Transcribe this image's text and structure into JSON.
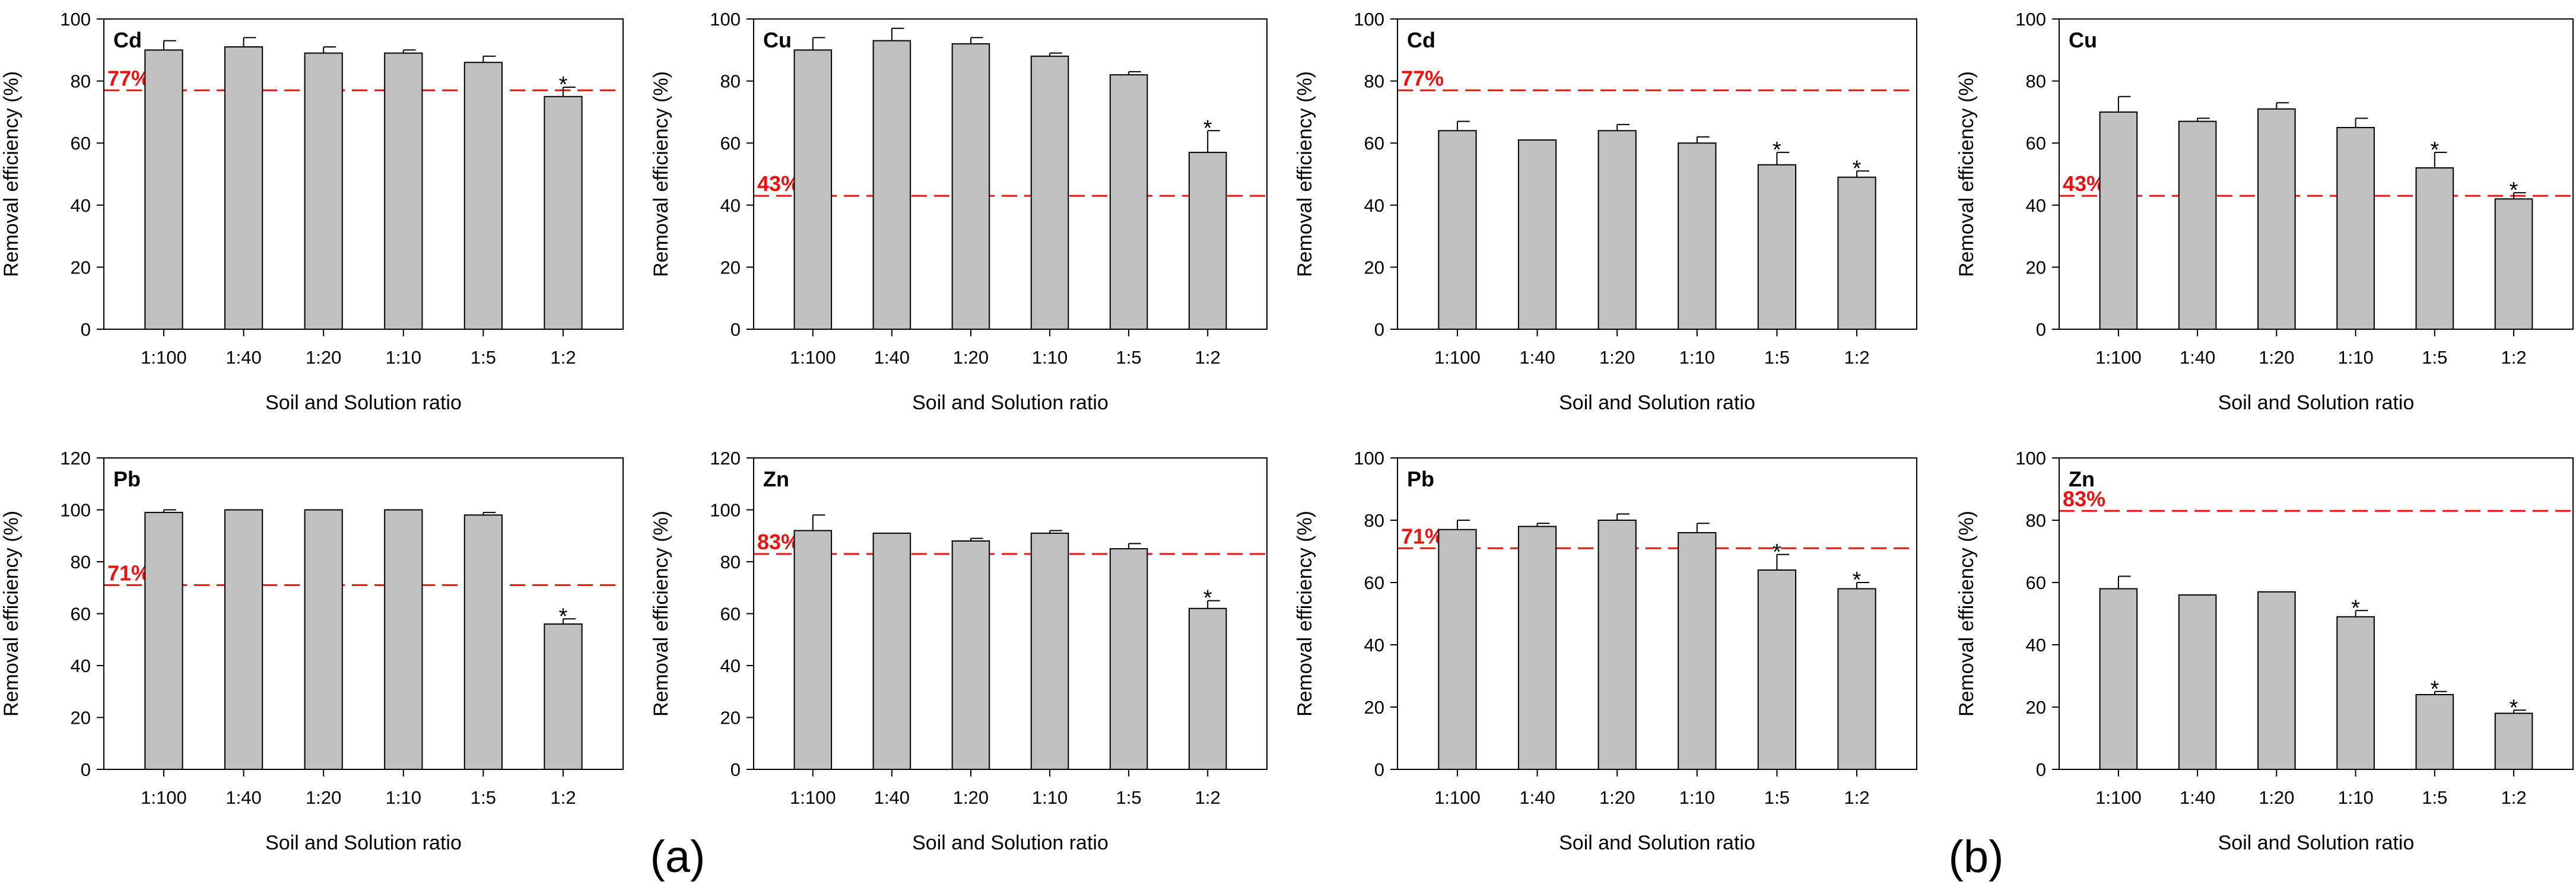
{
  "chart_data": [
    {
      "type": "bar",
      "group": "a",
      "metal": "Cd",
      "categories": [
        "1:100",
        "1:40",
        "1:20",
        "1:10",
        "1:5",
        "1:2"
      ],
      "values": [
        90,
        91,
        89,
        89,
        86,
        75
      ],
      "errors": [
        3,
        3,
        2,
        1,
        2,
        3
      ],
      "significant": [
        false,
        false,
        false,
        false,
        false,
        true
      ],
      "reference_line": 77,
      "reference_label": "77%",
      "xlabel": "Soil and Solution ratio",
      "ylabel": "Removal efficiency (%)",
      "ylim": [
        0,
        100
      ],
      "yticks": [
        0,
        20,
        40,
        60,
        80,
        100
      ]
    },
    {
      "type": "bar",
      "group": "a",
      "metal": "Cu",
      "categories": [
        "1:100",
        "1:40",
        "1:20",
        "1:10",
        "1:5",
        "1:2"
      ],
      "values": [
        90,
        93,
        92,
        88,
        82,
        57
      ],
      "errors": [
        4,
        4,
        2,
        1,
        1,
        7
      ],
      "significant": [
        false,
        false,
        false,
        false,
        false,
        true
      ],
      "reference_line": 43,
      "reference_label": "43%",
      "xlabel": "Soil and Solution ratio",
      "ylabel": "Removal efficiency (%)",
      "ylim": [
        0,
        100
      ],
      "yticks": [
        0,
        20,
        40,
        60,
        80,
        100
      ]
    },
    {
      "type": "bar",
      "group": "b",
      "metal": "Cd",
      "categories": [
        "1:100",
        "1:40",
        "1:20",
        "1:10",
        "1:5",
        "1:2"
      ],
      "values": [
        64,
        61,
        64,
        60,
        53,
        49
      ],
      "errors": [
        3,
        0,
        2,
        2,
        4,
        2
      ],
      "significant": [
        false,
        false,
        false,
        false,
        true,
        true
      ],
      "reference_line": 77,
      "reference_label": "77%",
      "xlabel": "Soil and Solution ratio",
      "ylabel": "Removal efficiency (%)",
      "ylim": [
        0,
        100
      ],
      "yticks": [
        0,
        20,
        40,
        60,
        80,
        100
      ]
    },
    {
      "type": "bar",
      "group": "b",
      "metal": "Cu",
      "categories": [
        "1:100",
        "1:40",
        "1:20",
        "1:10",
        "1:5",
        "1:2"
      ],
      "values": [
        70,
        67,
        71,
        65,
        52,
        42
      ],
      "errors": [
        5,
        1,
        2,
        3,
        5,
        2
      ],
      "significant": [
        false,
        false,
        false,
        false,
        true,
        true
      ],
      "reference_line": 43,
      "reference_label": "43%",
      "xlabel": "Soil and Solution ratio",
      "ylabel": "Removal efficiency (%)",
      "ylim": [
        0,
        100
      ],
      "yticks": [
        0,
        20,
        40,
        60,
        80,
        100
      ]
    },
    {
      "type": "bar",
      "group": "a",
      "metal": "Pb",
      "categories": [
        "1:100",
        "1:40",
        "1:20",
        "1:10",
        "1:5",
        "1:2"
      ],
      "values": [
        99,
        100,
        100,
        100,
        98,
        56
      ],
      "errors": [
        1,
        0,
        0,
        0,
        1,
        2
      ],
      "significant": [
        false,
        false,
        false,
        false,
        false,
        true
      ],
      "reference_line": 71,
      "reference_label": "71%",
      "xlabel": "Soil and Solution ratio",
      "ylabel": "Removal efficiency (%)",
      "ylim": [
        0,
        120
      ],
      "yticks": [
        0,
        20,
        40,
        60,
        80,
        100,
        120
      ]
    },
    {
      "type": "bar",
      "group": "a",
      "metal": "Zn",
      "categories": [
        "1:100",
        "1:40",
        "1:20",
        "1:10",
        "1:5",
        "1:2"
      ],
      "values": [
        92,
        91,
        88,
        91,
        85,
        62
      ],
      "errors": [
        6,
        0,
        1,
        1,
        2,
        3
      ],
      "significant": [
        false,
        false,
        false,
        false,
        false,
        true
      ],
      "reference_line": 83,
      "reference_label": "83%",
      "xlabel": "Soil and Solution ratio",
      "ylabel": "Removal efficiency (%)",
      "ylim": [
        0,
        120
      ],
      "yticks": [
        0,
        20,
        40,
        60,
        80,
        100,
        120
      ]
    },
    {
      "type": "bar",
      "group": "b",
      "metal": "Pb",
      "categories": [
        "1:100",
        "1:40",
        "1:20",
        "1:10",
        "1:5",
        "1:2"
      ],
      "values": [
        77,
        78,
        80,
        76,
        64,
        58
      ],
      "errors": [
        3,
        1,
        2,
        3,
        5,
        2
      ],
      "significant": [
        false,
        false,
        false,
        false,
        true,
        true
      ],
      "reference_line": 71,
      "reference_label": "71%",
      "xlabel": "Soil and Solution ratio",
      "ylabel": "Removal efficiency (%)",
      "ylim": [
        0,
        100
      ],
      "yticks": [
        0,
        20,
        40,
        60,
        80,
        100
      ]
    },
    {
      "type": "bar",
      "group": "b",
      "metal": "Zn",
      "categories": [
        "1:100",
        "1:40",
        "1:20",
        "1:10",
        "1:5",
        "1:2"
      ],
      "values": [
        58,
        56,
        57,
        49,
        24,
        18
      ],
      "errors": [
        4,
        0,
        0,
        2,
        1,
        1
      ],
      "significant": [
        false,
        false,
        false,
        true,
        true,
        true
      ],
      "reference_line": 83,
      "reference_label": "83%",
      "xlabel": "Soil and Solution ratio",
      "ylabel": "Removal efficiency (%)",
      "ylim": [
        0,
        100
      ],
      "yticks": [
        0,
        20,
        40,
        60,
        80,
        100
      ]
    }
  ],
  "panel_labels": {
    "a": "(a)",
    "b": "(b)"
  },
  "significance_marker": "*",
  "colors": {
    "bar_fill": "#c0c0c0",
    "bar_stroke": "#000000",
    "reference_line": "#ee1111",
    "reference_text": "#ee1111"
  }
}
